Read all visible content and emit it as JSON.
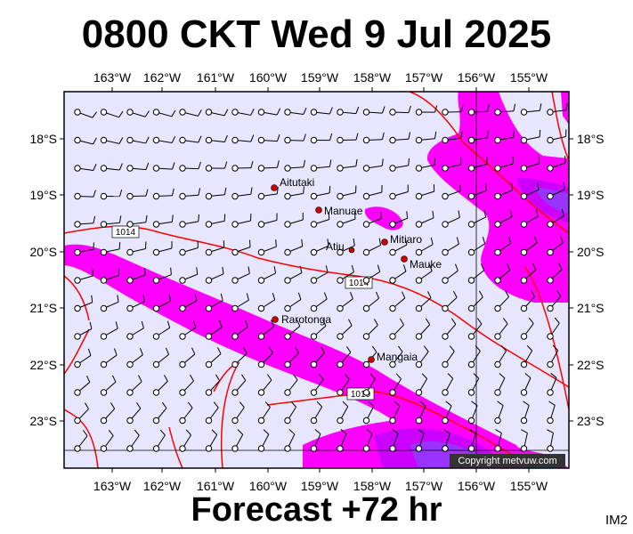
{
  "header": {
    "title": "0800 CKT Wed 9 Jul 2025"
  },
  "footer": {
    "forecast": "Forecast +72 hr",
    "code": "IM2"
  },
  "map": {
    "colors": {
      "sea": "#e6e6ff",
      "rain_light": "#ff00ff",
      "rain_medium": "#cc00ff",
      "rain_heavy": "#9933ff",
      "isobar": "#ff0000",
      "place_dot": "#cc0000"
    },
    "lon_labels": [
      "163°W",
      "162°W",
      "161°W",
      "160°W",
      "159°W",
      "158°W",
      "157°W",
      "156°W",
      "155°W"
    ],
    "lat_labels": [
      "18°S",
      "19°S",
      "20°S",
      "21°S",
      "22°S",
      "23°S"
    ],
    "places": [
      {
        "name": "Aitutaki"
      },
      {
        "name": "Manuae"
      },
      {
        "name": "Atiu"
      },
      {
        "name": "Mitiaro"
      },
      {
        "name": "Mauke"
      },
      {
        "name": "Rarotonga"
      },
      {
        "name": "Mangaia"
      }
    ],
    "isobar_labels": [
      "1014",
      "1014",
      "1010"
    ],
    "copyright": "Copyright metvuw.com"
  }
}
